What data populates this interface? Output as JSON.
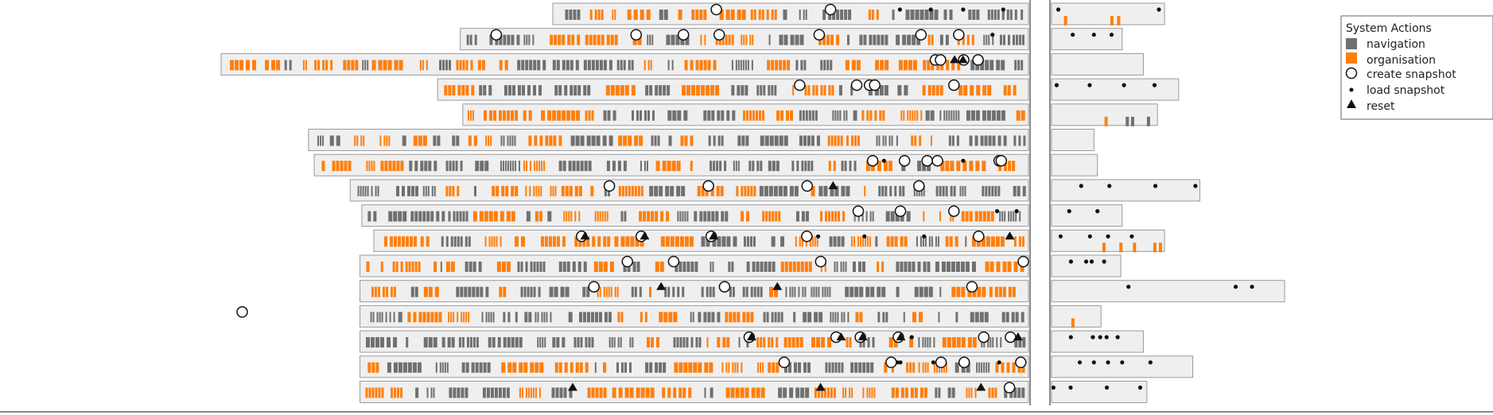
{
  "chart_data": {
    "type": "timeline",
    "legend": {
      "title": "System Actions",
      "items": [
        {
          "key": "navigation",
          "label": "navigation",
          "symbol": "square",
          "color": "#707070"
        },
        {
          "key": "organisation",
          "label": "organisation",
          "symbol": "square",
          "color": "#ff7f0e"
        },
        {
          "key": "create_snapshot",
          "label": "create snapshot",
          "symbol": "open-circle",
          "color": "#111111"
        },
        {
          "key": "load_snapshot",
          "label": "load snapshot",
          "symbol": "dot",
          "color": "#111111"
        },
        {
          "key": "reset",
          "label": "reset",
          "symbol": "triangle",
          "color": "#111111"
        }
      ],
      "placement": "top-right"
    },
    "colors": {
      "navigation": "#707070",
      "organisation": "#ff7f0e",
      "track": "#efefef",
      "track_border": "#9a9a9a",
      "marker": "#111111"
    },
    "sessions": [
      {
        "start": 0.5375,
        "end": 0.75,
        "create": [
          0.6965,
          0.8075
        ],
        "load": [
          0.6965,
          0.875,
          0.905,
          0.9365,
          0.9755
        ],
        "reset": [],
        "post": {
          "end": 0.16,
          "load": [
            0.06,
            0.95
          ],
          "bars": [
            [
              0.52,
              "o"
            ],
            [
              0.58,
              "o"
            ],
            [
              0.11,
              "o"
            ]
          ]
        }
      },
      {
        "start": 0.4475,
        "end": 0.5333,
        "create": [
          0.4825,
          0.6185,
          0.6645,
          0.6993,
          0.7965,
          0.8955,
          0.9322
        ],
        "load": [
          0.8965,
          0.965
        ],
        "reset": [],
        "post": {
          "end": 0.1,
          "load": [
            0.3,
            0.6,
            0.85
          ],
          "bars": []
        }
      },
      {
        "start": 0.215,
        "end": 0.75,
        "create": [
          0.9095,
          0.9145,
          0.937,
          0.951
        ],
        "load": [],
        "reset": [
          0.9258,
          0.934
        ],
        "post": {
          "end": 0.13,
          "load": [],
          "bars": []
        }
      },
      {
        "start": 0.4255,
        "end": 0.75,
        "create": [
          0.7775,
          0.833,
          0.8455,
          0.8505,
          0.9275
        ],
        "load": [],
        "reset": [],
        "post": {
          "end": 0.18,
          "load": [
            0.04,
            0.3,
            0.57,
            0.81
          ],
          "bars": []
        }
      },
      {
        "start": 0.45,
        "end": 0.6,
        "create": [],
        "load": [],
        "reset": [],
        "post": {
          "end": 0.15,
          "load": [],
          "bars": [
            [
              0.5,
              "o"
            ],
            [
              0.7,
              "n"
            ],
            [
              0.75,
              "n"
            ],
            [
              0.9,
              "n"
            ]
          ]
        }
      },
      {
        "start": 0.3,
        "end": 0.72,
        "create": [],
        "load": [],
        "reset": [],
        "post": {
          "end": 0.06,
          "load": [],
          "bars": []
        }
      },
      {
        "start": 0.3055,
        "end": 0.75,
        "create": [
          0.8485,
          0.8795,
          0.9015,
          0.9115,
          0.9715,
          0.9735
        ],
        "load": [
          0.8595,
          0.9365
        ],
        "reset": [],
        "post": {
          "end": 0.065,
          "load": [],
          "bars": []
        }
      },
      {
        "start": 0.3405,
        "end": 0.75,
        "create": [
          0.5925,
          0.6888,
          0.7848,
          0.8935
        ],
        "load": [],
        "reset": [
          0.8077
        ],
        "post": {
          "end": 0.21,
          "load": [
            0.2,
            0.39,
            0.7,
            0.97
          ],
          "bars": []
        }
      },
      {
        "start": 0.3518,
        "end": 0.75,
        "create": [
          0.8345,
          0.8755,
          0.9275
        ],
        "load": [
          0.9695,
          0.9885
        ],
        "reset": [],
        "post": {
          "end": 0.1,
          "load": [
            0.25,
            0.65
          ],
          "bars": []
        }
      },
      {
        "start": 0.3635,
        "end": 0.75,
        "create": [
          0.5655,
          0.6235,
          0.6915,
          0.7845,
          0.9515
        ],
        "load": [
          0.7955,
          0.8405,
          0.8985,
          0.9495
        ],
        "reset": [
          0.5665,
          0.6245,
          0.6915,
          0.9795
        ],
        "post": {
          "end": 0.16,
          "load": [
            0.08,
            0.34,
            0.5,
            0.71
          ],
          "bars": [
            [
              0.45,
              "o"
            ],
            [
              0.6,
              "o"
            ],
            [
              0.72,
              "o"
            ],
            [
              0.9,
              "o"
            ],
            [
              0.95,
              "o"
            ]
          ]
        }
      },
      {
        "start": 0.35,
        "end": 0.75,
        "create": [
          0.61,
          0.655,
          0.798,
          0.995
        ],
        "load": [],
        "reset": [],
        "post": {
          "end": 0.098,
          "load": [
            0.28,
            0.5,
            0.58,
            0.76
          ],
          "bars": []
        }
      },
      {
        "start": 0.35,
        "end": 0.75,
        "create": [
          0.5775,
          0.7045,
          0.945
        ],
        "load": [],
        "reset": [
          0.6405,
          0.7535
        ],
        "post": {
          "end": 0.33,
          "load": [
            0.33,
            0.79,
            0.86
          ],
          "bars": []
        }
      },
      {
        "start": 0.35,
        "end": 0.75,
        "create": [
          0.2355
        ],
        "load": [],
        "reset": [],
        "post": {
          "end": 0.07,
          "load": [],
          "bars": [
            [
              0.4,
              "o"
            ]
          ]
        }
      },
      {
        "start": 0.35,
        "end": 0.75,
        "create": [
          0.7285,
          0.813,
          0.8365,
          0.8735,
          0.9565,
          0.9825
        ],
        "load": [
          0.8355,
          0.8865
        ],
        "reset": [
          0.7285,
          0.8155,
          0.8365,
          0.8735,
          0.9875
        ],
        "post": {
          "end": 0.13,
          "load": [
            0.21,
            0.45,
            0.53,
            0.6,
            0.72
          ],
          "bars": []
        }
      },
      {
        "start": 0.35,
        "end": 0.75,
        "create": [
          0.7625,
          0.8665,
          0.915,
          0.9375,
          0.9925
        ],
        "load": [
          0.8725,
          0.8755,
          0.9075,
          0.9185,
          0.9715
        ],
        "reset": [],
        "post": {
          "end": 0.2,
          "load": [
            0.2,
            0.3,
            0.4,
            0.5,
            0.7
          ],
          "bars": []
        }
      },
      {
        "start": 0.35,
        "end": 0.75,
        "create": [
          0.9815
        ],
        "load": [],
        "reset": [
          0.5545,
          0.7955,
          0.9515
        ],
        "post": {
          "end": 0.135,
          "load": [
            0.02,
            0.2,
            0.58,
            0.93
          ],
          "bars": []
        }
      }
    ]
  }
}
